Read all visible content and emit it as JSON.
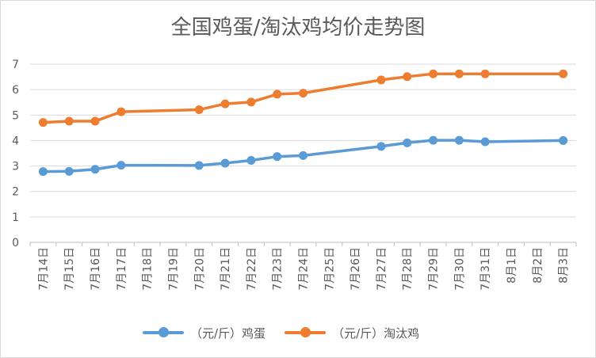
{
  "chart_data": {
    "type": "line",
    "title": "全国鸡蛋/淘汰鸡均价走势图",
    "categories": [
      "7月14日",
      "7月15日",
      "7月16日",
      "7月17日",
      "7月18日",
      "7月19日",
      "7月20日",
      "7月21日",
      "7月22日",
      "7月23日",
      "7月24日",
      "7月25日",
      "7月26日",
      "7月27日",
      "7月28日",
      "7月29日",
      "7月30日",
      "7月31日",
      "8月1日",
      "8月2日",
      "8月3日"
    ],
    "y_ticks": [
      "0",
      "1",
      "2",
      "3",
      "4",
      "5",
      "6",
      "7"
    ],
    "ylim": [
      0,
      7
    ],
    "grid": true,
    "legend_position": "bottom",
    "series": [
      {
        "name": "（元/斤）鸡蛋",
        "color": "#5b9bd5",
        "values": [
          2.78,
          2.79,
          2.87,
          3.03,
          null,
          null,
          3.02,
          3.11,
          3.22,
          3.37,
          3.41,
          null,
          null,
          3.77,
          3.91,
          4.01,
          4.01,
          3.95,
          null,
          null,
          4.0
        ]
      },
      {
        "name": "（元/斤）淘汰鸡",
        "color": "#ed7d31",
        "values": [
          4.71,
          4.76,
          4.76,
          5.13,
          null,
          null,
          5.21,
          5.44,
          5.51,
          5.82,
          5.86,
          null,
          null,
          6.38,
          6.51,
          6.62,
          6.62,
          6.62,
          null,
          null,
          6.62
        ]
      }
    ]
  }
}
